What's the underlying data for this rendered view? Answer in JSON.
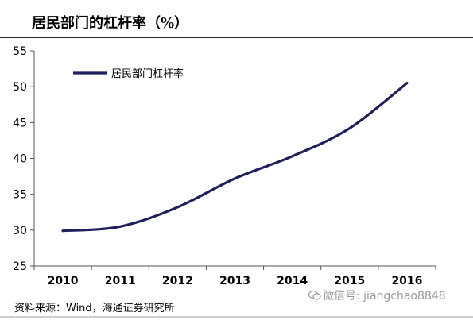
{
  "header": {
    "title": "居民部门的杠杆率（%）"
  },
  "chart_data": {
    "type": "line",
    "x": [
      "2010",
      "2011",
      "2012",
      "2013",
      "2014",
      "2015",
      "2016"
    ],
    "ylim": [
      25,
      55
    ],
    "yticks": [
      25,
      30,
      35,
      40,
      45,
      50,
      55
    ],
    "series": [
      {
        "name": "居民部门杠杆率",
        "values": [
          29.9,
          30.5,
          33.2,
          37.2,
          40.3,
          44.2,
          50.5
        ],
        "color": "#1f1f5c"
      }
    ],
    "legend_position": "top-left",
    "grid": false
  },
  "footer": {
    "source": "资料来源：Wind，海通证券研究所",
    "watermark": "微信号: jiangchao8848",
    "watermark_icon": "wechat-icon"
  }
}
